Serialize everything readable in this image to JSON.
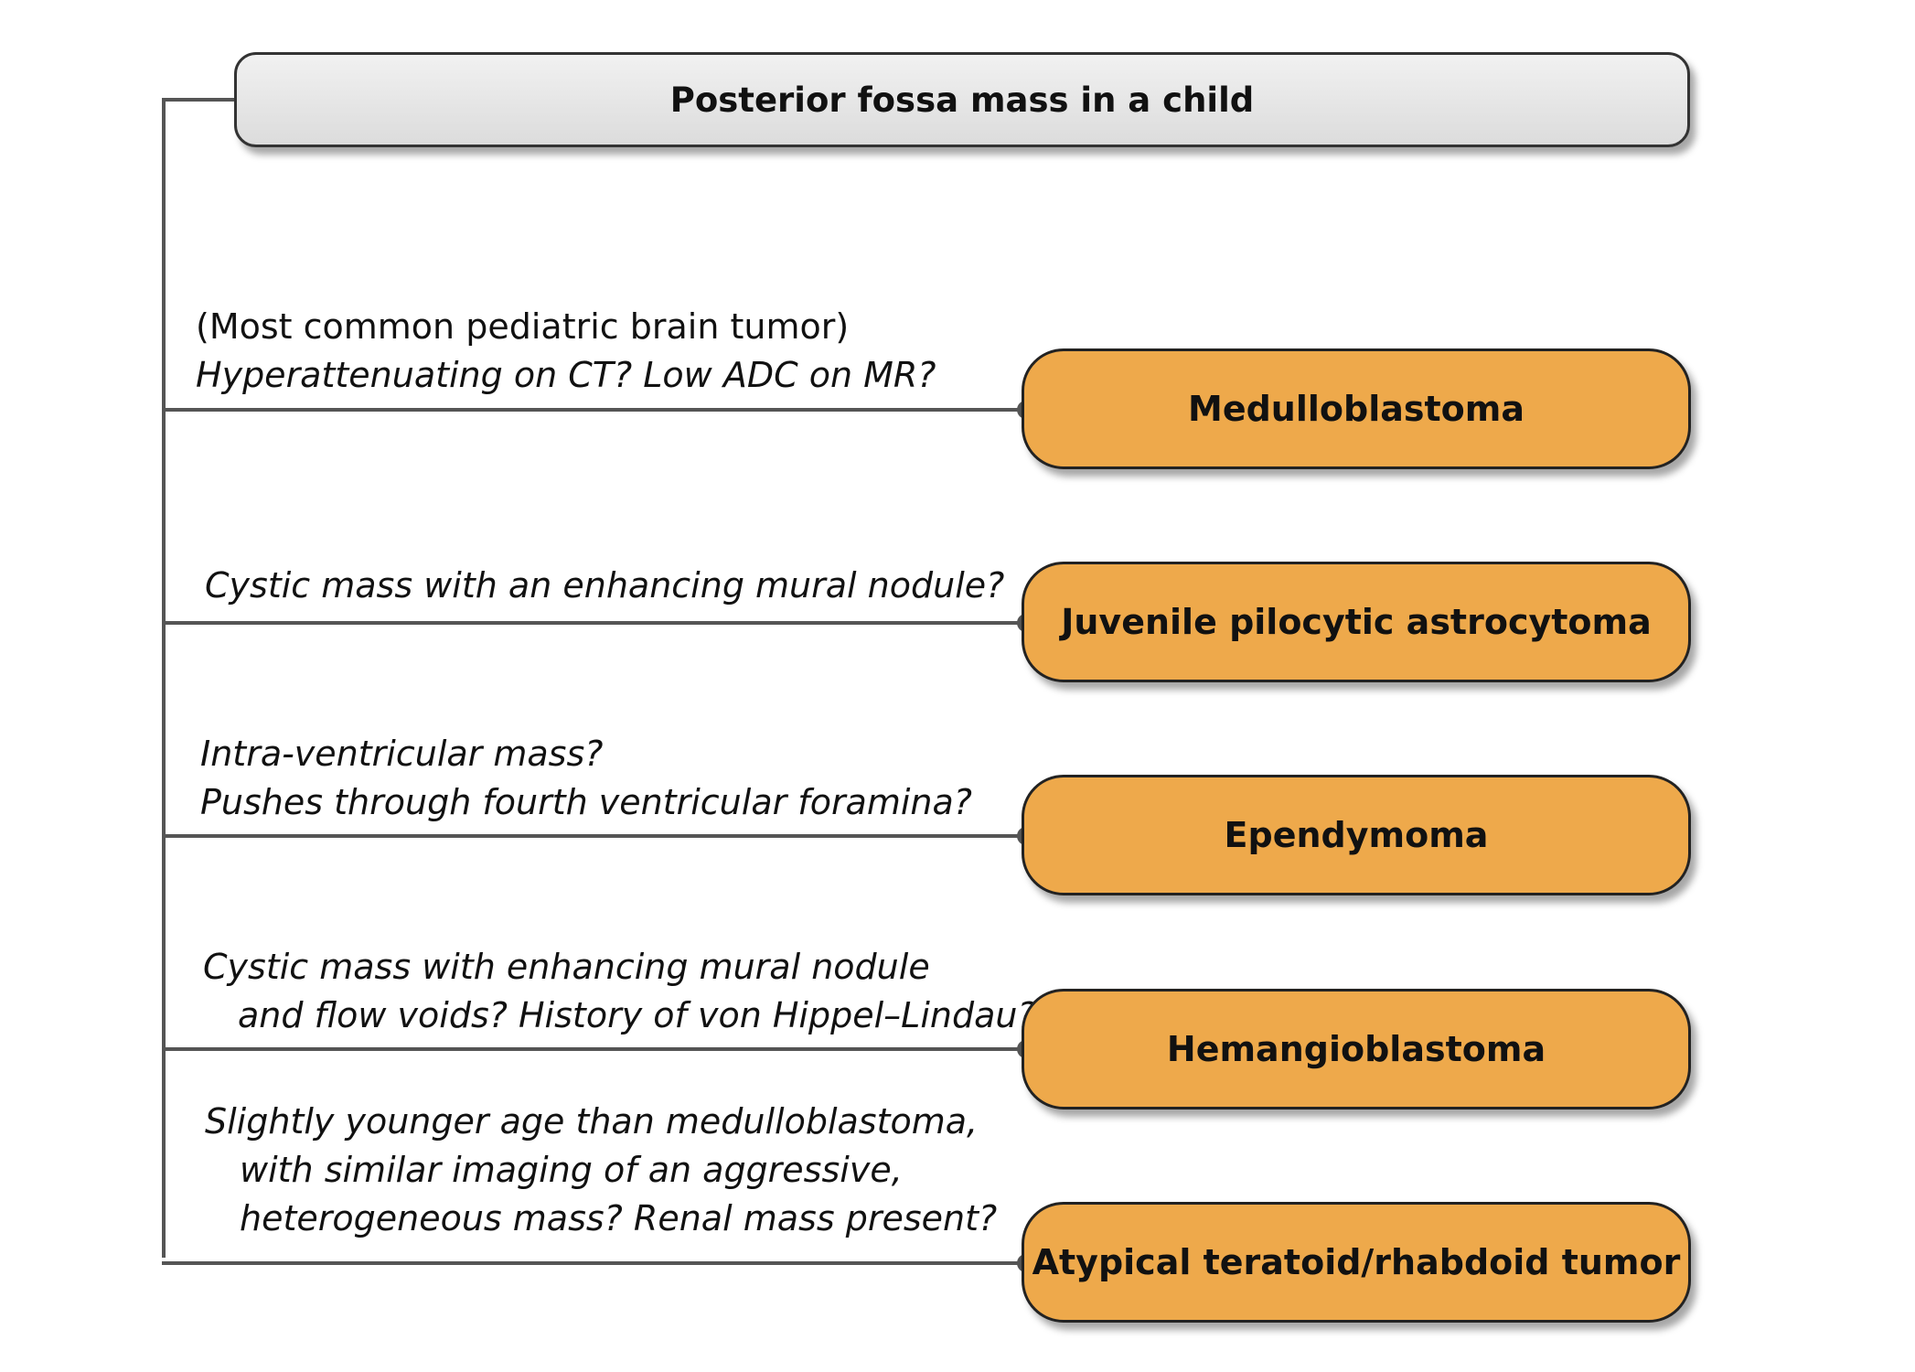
{
  "root": {
    "label": "Posterior fossa mass in a child"
  },
  "branches": [
    {
      "note": "(Most common pediatric brain tumor)",
      "question": [
        "Hyperattenuating on CT? Low ADC on MR?"
      ],
      "result": "Medulloblastoma"
    },
    {
      "question": [
        "Cystic mass with an enhancing mural nodule?"
      ],
      "result": "Juvenile pilocytic astrocytoma"
    },
    {
      "question": [
        "Intra-ventricular mass?",
        "Pushes through fourth ventricular foramina?"
      ],
      "result": "Ependymoma"
    },
    {
      "question": [
        "Cystic mass with enhancing mural nodule",
        "and flow voids? History of von Hippel–Lindau?"
      ],
      "result": "Hemangioblastoma"
    },
    {
      "question": [
        "Slightly younger age than medulloblastoma,",
        "with similar imaging of an aggressive,",
        "heterogeneous mass? Renal mass present?"
      ],
      "result": "Atypical teratoid/rhabdoid tumor"
    }
  ],
  "colors": {
    "result_fill": "#eea94b",
    "root_fill": "#e6e6e6",
    "line": "#555555"
  }
}
